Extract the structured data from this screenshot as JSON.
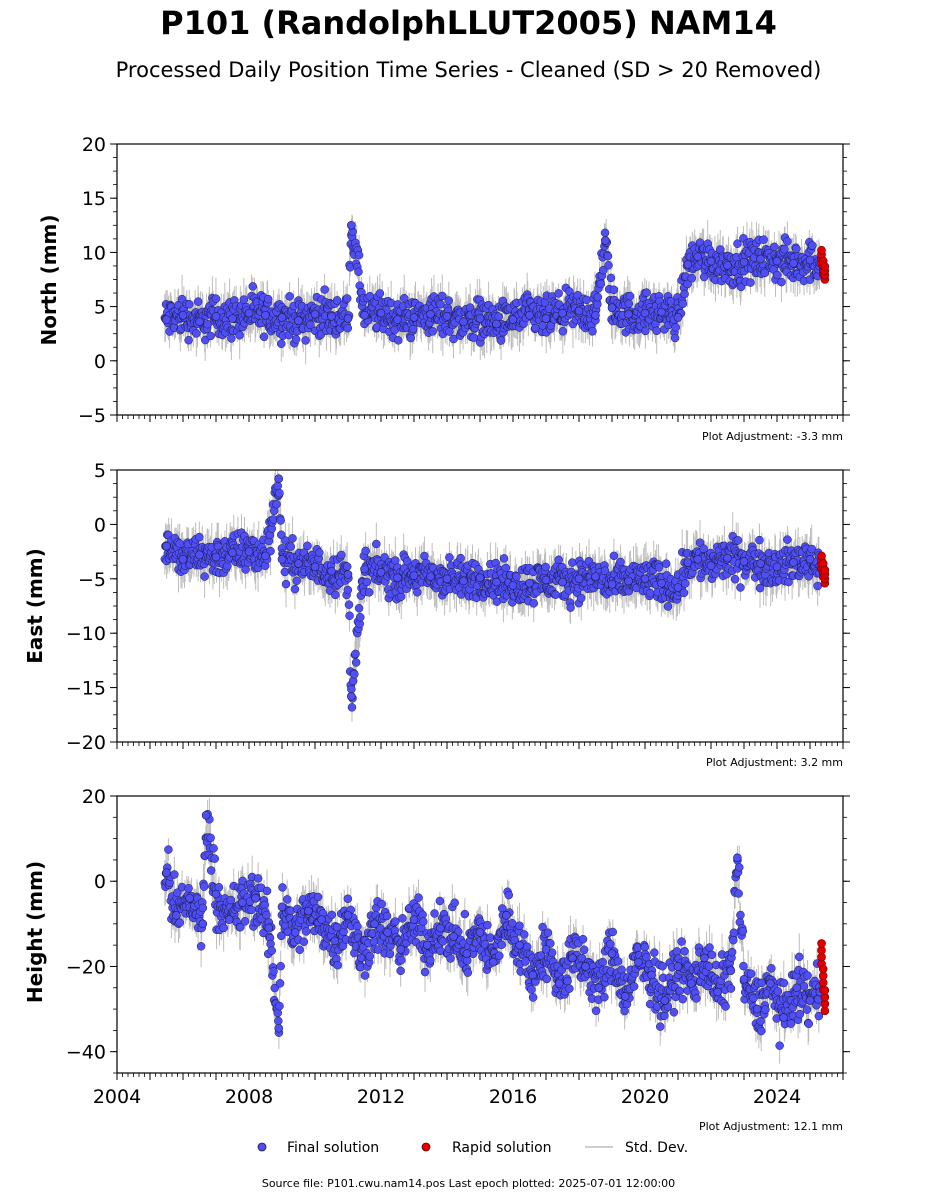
{
  "figure": {
    "title": "P101 (RandolphLLUT2005) NAM14",
    "subtitle": "Processed Daily Position Time Series - Cleaned (SD > 20 Removed)",
    "source_note": "Source file: P101.cwu.nam14.pos  Last epoch plotted: 2025-07-01 12:00:00"
  },
  "legend": {
    "final": "Final solution",
    "rapid": "Rapid solution",
    "sd": "Std. Dev."
  },
  "colors": {
    "final_fill": "#4f4ff5",
    "final_edge": "#1a1a4a",
    "rapid_fill": "#e00000",
    "sd_line": "#bdbdbd"
  },
  "chart_data": [
    {
      "type": "scatter",
      "panel": "north",
      "ylabel": "North (mm)",
      "adjustment": "Plot Adjustment: -3.3 mm",
      "xlim": [
        2004,
        2026
      ],
      "ylim": [
        -5,
        20
      ],
      "yticks": [
        -5,
        0,
        5,
        10,
        15,
        20
      ],
      "ytick_labels": [
        "−5",
        "0",
        "5",
        "10",
        "15",
        "20"
      ],
      "series": [
        {
          "name": "Final solution",
          "x": [
            2005.5,
            2006.0,
            2006.5,
            2007.0,
            2007.5,
            2008.0,
            2008.5,
            2009.0,
            2009.5,
            2010.0,
            2010.5,
            2011.0,
            2011.5,
            2012.0,
            2012.5,
            2013.0,
            2013.5,
            2014.0,
            2014.5,
            2015.0,
            2015.5,
            2016.0,
            2016.5,
            2017.0,
            2017.5,
            2018.0,
            2018.5,
            2019.0,
            2019.5,
            2020.0,
            2020.5,
            2021.0,
            2021.3,
            2021.6,
            2022.0,
            2022.5,
            2023.0,
            2023.5,
            2024.0,
            2024.5,
            2025.0,
            2025.3,
            2011.1,
            2018.8
          ],
          "y": [
            3.8,
            4.2,
            3.6,
            4.1,
            3.9,
            4.4,
            4.2,
            4.0,
            3.7,
            4.3,
            4.1,
            3.9,
            4.2,
            4.4,
            3.8,
            4.0,
            4.3,
            4.1,
            3.6,
            3.9,
            3.4,
            3.8,
            4.2,
            3.9,
            4.4,
            4.6,
            4.2,
            4.9,
            4.3,
            4.4,
            4.5,
            4.0,
            8.9,
            9.6,
            9.2,
            8.8,
            9.1,
            9.4,
            9.2,
            9.0,
            9.3,
            9.0,
            12.5,
            11.1
          ]
        },
        {
          "name": "Rapid solution",
          "x": [
            2025.35,
            2025.4,
            2025.45
          ],
          "y": [
            9.6,
            8.6,
            8.1
          ]
        }
      ]
    },
    {
      "type": "scatter",
      "panel": "east",
      "ylabel": "East (mm)",
      "adjustment": "Plot Adjustment: 3.2 mm",
      "xlim": [
        2004,
        2026
      ],
      "ylim": [
        -20,
        5
      ],
      "yticks": [
        -20,
        -15,
        -10,
        -5,
        0,
        5
      ],
      "ytick_labels": [
        "−20",
        "−15",
        "−10",
        "−5",
        "0",
        "5"
      ],
      "series": [
        {
          "name": "Final solution",
          "x": [
            2005.5,
            2006.0,
            2006.5,
            2007.0,
            2007.5,
            2008.0,
            2008.5,
            2009.0,
            2009.5,
            2010.0,
            2010.5,
            2011.0,
            2011.5,
            2012.0,
            2012.5,
            2013.0,
            2013.5,
            2014.0,
            2014.5,
            2015.0,
            2015.5,
            2016.0,
            2016.5,
            2017.0,
            2017.5,
            2018.0,
            2018.5,
            2019.0,
            2019.5,
            2020.0,
            2020.5,
            2021.0,
            2021.3,
            2021.6,
            2022.0,
            2022.5,
            2023.0,
            2023.5,
            2024.0,
            2024.5,
            2025.0,
            2025.3,
            2008.9,
            2011.1
          ],
          "y": [
            -2.0,
            -3.2,
            -2.8,
            -3.0,
            -2.6,
            -2.5,
            -2.9,
            -3.2,
            -3.6,
            -3.9,
            -4.3,
            -4.6,
            -4.1,
            -4.4,
            -4.9,
            -4.7,
            -4.8,
            -5.0,
            -5.2,
            -4.9,
            -5.3,
            -5.6,
            -5.4,
            -5.1,
            -5.3,
            -5.0,
            -4.8,
            -5.5,
            -5.2,
            -5.0,
            -5.4,
            -5.8,
            -3.5,
            -3.2,
            -3.8,
            -3.1,
            -3.4,
            -3.6,
            -3.9,
            -3.5,
            -3.2,
            -3.8,
            4.2,
            -15.8
          ]
        },
        {
          "name": "Rapid solution",
          "x": [
            2025.35,
            2025.4,
            2025.45
          ],
          "y": [
            -3.5,
            -4.2,
            -4.8
          ]
        }
      ]
    },
    {
      "type": "scatter",
      "panel": "height",
      "ylabel": "Height (mm)",
      "adjustment": "Plot Adjustment: 12.1 mm",
      "xlim": [
        2004,
        2026
      ],
      "ylim": [
        -45,
        20
      ],
      "yticks": [
        -40,
        -20,
        0,
        20
      ],
      "ytick_labels": [
        "−40",
        "−20",
        "0",
        "20"
      ],
      "xticks": [
        2004,
        2008,
        2012,
        2016,
        2020,
        2024
      ],
      "xtick_labels": [
        "2004",
        "2008",
        "2012",
        "2016",
        "2020",
        "2024"
      ],
      "series": [
        {
          "name": "Final solution",
          "x": [
            2005.5,
            2005.8,
            2006.2,
            2006.6,
            2007.0,
            2007.4,
            2007.8,
            2008.2,
            2008.6,
            2009.0,
            2009.4,
            2009.8,
            2010.2,
            2010.6,
            2011.0,
            2011.4,
            2011.8,
            2012.2,
            2012.6,
            2013.0,
            2013.4,
            2013.8,
            2014.2,
            2014.6,
            2015.0,
            2015.4,
            2015.8,
            2016.2,
            2016.6,
            2017.0,
            2017.4,
            2017.8,
            2018.2,
            2018.6,
            2019.0,
            2019.4,
            2019.8,
            2020.2,
            2020.6,
            2021.0,
            2021.4,
            2021.8,
            2022.2,
            2022.6,
            2023.0,
            2023.4,
            2023.8,
            2024.2,
            2024.6,
            2025.0,
            2025.3,
            2006.7,
            2008.9,
            2022.8
          ],
          "y": [
            2,
            -8,
            -4,
            -10,
            -3,
            -9,
            -5,
            -4,
            -11,
            -6,
            -12,
            -7,
            -9,
            -14,
            -8,
            -18,
            -10,
            -12,
            -16,
            -9,
            -15,
            -11,
            -13,
            -17,
            -12,
            -19,
            -8,
            -15,
            -22,
            -16,
            -24,
            -18,
            -20,
            -25,
            -17,
            -27,
            -19,
            -22,
            -28,
            -20,
            -24,
            -18,
            -26,
            -21,
            -23,
            -30,
            -24,
            -32,
            -25,
            -28,
            -26,
            15.5,
            -34.5,
            5.5
          ]
        },
        {
          "name": "Rapid solution",
          "x": [
            2025.35,
            2025.4,
            2025.45
          ],
          "y": [
            -17,
            -23,
            -28
          ]
        }
      ]
    }
  ]
}
